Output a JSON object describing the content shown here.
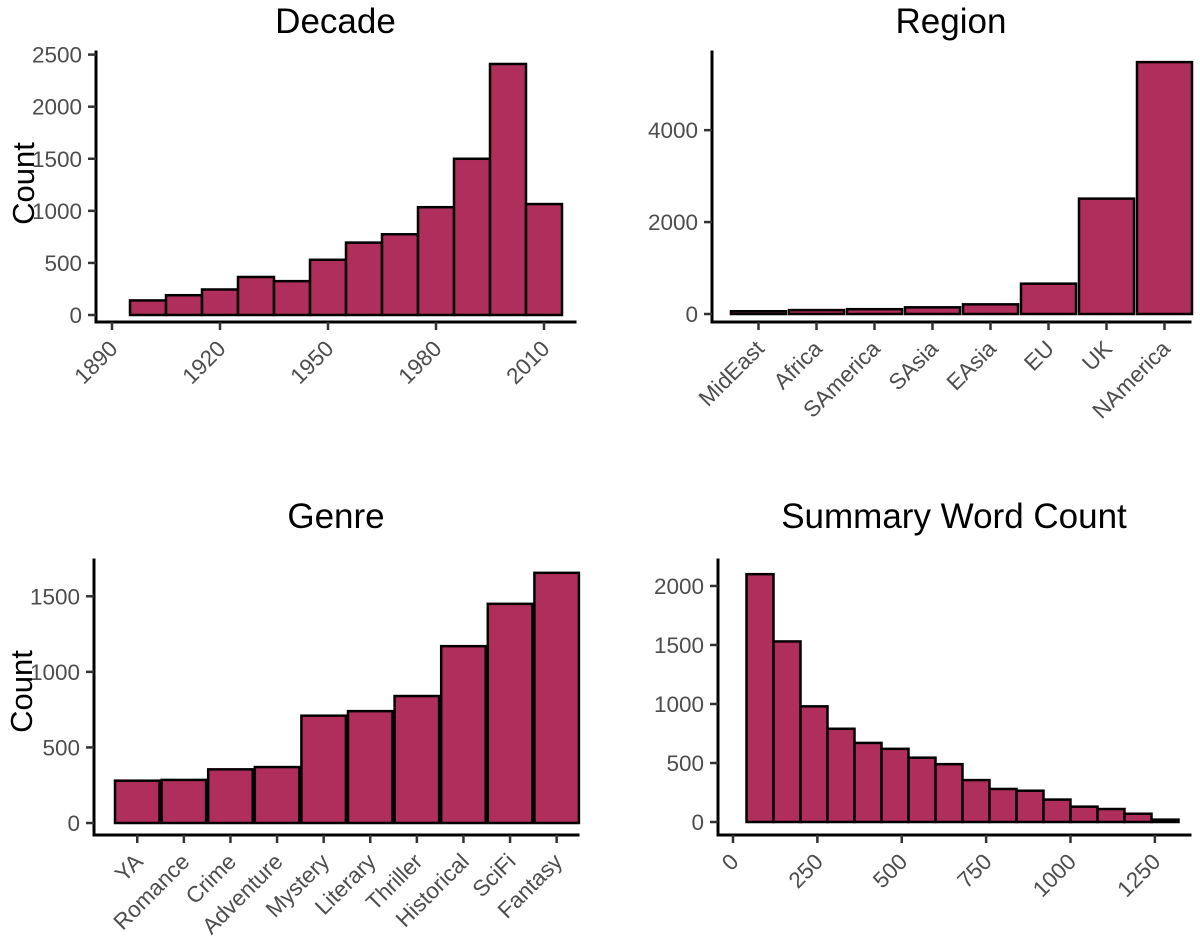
{
  "figure": {
    "background": "#FFFFFF",
    "layout": "2x2 grid of bar charts"
  },
  "palette": {
    "bar_fill": "#AF2E5C",
    "bar_stroke": "#000000",
    "axis_line": "#000000",
    "tick_mark": "#333333",
    "tick_label": "#4D4D4D",
    "title_color": "#000000"
  },
  "chart_data": [
    {
      "id": "decade",
      "type": "bar",
      "subtype": "histogram",
      "title": "Decade",
      "ylabel": "Count",
      "grid": false,
      "legend": null,
      "x": {
        "type": "numeric",
        "bin_left": 1895,
        "bin_width": 10
      },
      "bin_centers": [
        1900,
        1910,
        1920,
        1930,
        1940,
        1950,
        1960,
        1970,
        1980,
        1990,
        2000,
        2010
      ],
      "values": [
        140,
        190,
        245,
        365,
        325,
        530,
        695,
        775,
        1035,
        1500,
        2410,
        1065
      ],
      "xticks": [
        {
          "label": "1890",
          "value": 1890
        },
        {
          "label": "1920",
          "value": 1920
        },
        {
          "label": "1950",
          "value": 1950
        },
        {
          "label": "1980",
          "value": 1980
        },
        {
          "label": "2010",
          "value": 2010
        }
      ],
      "yticks": [
        {
          "label": "0",
          "value": 0
        },
        {
          "label": "500",
          "value": 500
        },
        {
          "label": "1000",
          "value": 1000
        },
        {
          "label": "1500",
          "value": 1500
        },
        {
          "label": "2000",
          "value": 2000
        },
        {
          "label": "2500",
          "value": 2500
        }
      ],
      "ylim": [
        0,
        2525
      ]
    },
    {
      "id": "region",
      "type": "bar",
      "subtype": "category_counts",
      "title": "Region",
      "ylabel": null,
      "grid": false,
      "legend": null,
      "x": {
        "type": "categorical"
      },
      "categories": [
        "MidEast",
        "Africa",
        "SAmerica",
        "SAsia",
        "EAsia",
        "EU",
        "UK",
        "NAmerica"
      ],
      "values": [
        60,
        85,
        105,
        145,
        210,
        660,
        2510,
        5480
      ],
      "yticks": [
        {
          "label": "0",
          "value": 0
        },
        {
          "label": "2000",
          "value": 2000
        },
        {
          "label": "4000",
          "value": 4000
        }
      ],
      "ylim": [
        0,
        5700
      ]
    },
    {
      "id": "genre",
      "type": "bar",
      "subtype": "category_counts",
      "title": "Genre",
      "ylabel": "Count",
      "grid": false,
      "legend": null,
      "x": {
        "type": "categorical"
      },
      "categories": [
        "YA",
        "Romance",
        "Crime",
        "Adventure",
        "Mystery",
        "Literary",
        "Thriller",
        "Historical",
        "SciFi",
        "Fantasy"
      ],
      "values": [
        280,
        285,
        355,
        370,
        710,
        740,
        840,
        1170,
        1450,
        1655
      ],
      "yticks": [
        {
          "label": "0",
          "value": 0
        },
        {
          "label": "500",
          "value": 500
        },
        {
          "label": "1000",
          "value": 1000
        },
        {
          "label": "1500",
          "value": 1500
        }
      ],
      "ylim": [
        0,
        1740
      ]
    },
    {
      "id": "summary_word_count",
      "type": "bar",
      "subtype": "histogram",
      "title": "Summary Word Count",
      "ylabel": null,
      "grid": false,
      "legend": null,
      "x": {
        "type": "numeric",
        "bin_left": 40,
        "bin_width": 80
      },
      "bin_centers": [
        80,
        160,
        240,
        320,
        400,
        480,
        560,
        640,
        720,
        800,
        880,
        960,
        1040,
        1120,
        1200,
        1280
      ],
      "values": [
        2100,
        1530,
        980,
        790,
        670,
        620,
        545,
        490,
        355,
        280,
        265,
        190,
        130,
        110,
        70,
        20
      ],
      "xticks": [
        {
          "label": "0",
          "value": 0
        },
        {
          "label": "250",
          "value": 250
        },
        {
          "label": "500",
          "value": 500
        },
        {
          "label": "750",
          "value": 750
        },
        {
          "label": "1000",
          "value": 1000
        },
        {
          "label": "1250",
          "value": 1250
        }
      ],
      "yticks": [
        {
          "label": "0",
          "value": 0
        },
        {
          "label": "500",
          "value": 500
        },
        {
          "label": "1000",
          "value": 1000
        },
        {
          "label": "1500",
          "value": 1500
        },
        {
          "label": "2000",
          "value": 2000
        }
      ],
      "ylim": [
        0,
        2220
      ]
    }
  ]
}
